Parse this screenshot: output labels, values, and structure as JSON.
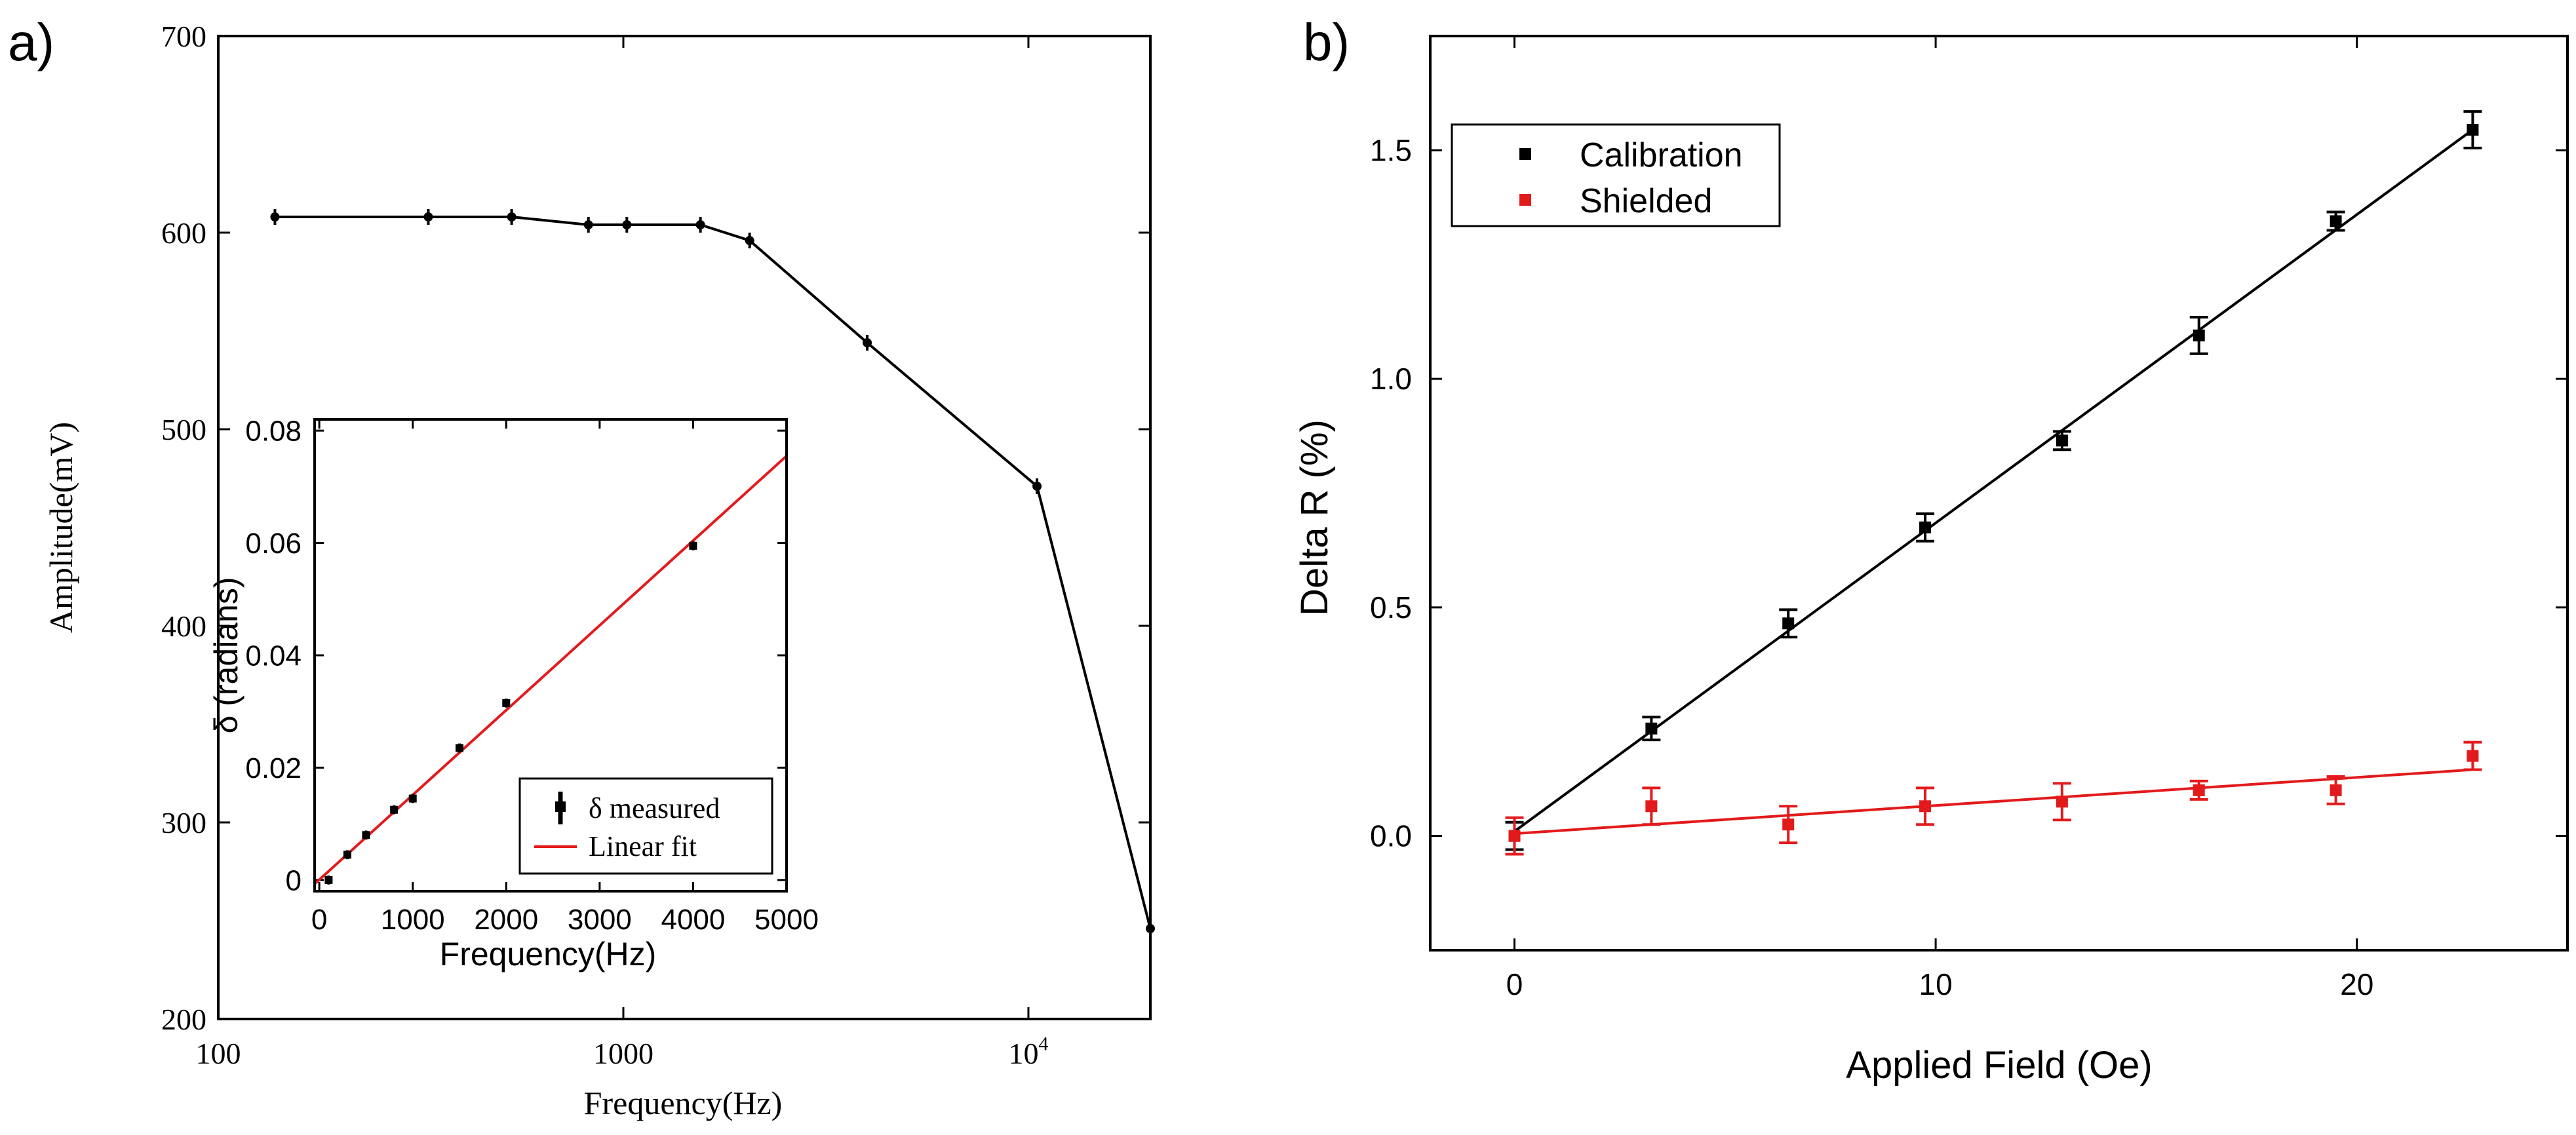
{
  "panel_labels": {
    "a": "a)",
    "b": "b)"
  },
  "chart_data": [
    {
      "id": "a-main",
      "type": "line",
      "xscale": "log",
      "title": "",
      "xlabel": "Frequency(Hz)",
      "ylabel": "Amplitude(mV)",
      "xlim": [
        100,
        20000
      ],
      "ylim": [
        200,
        700
      ],
      "xticks": [
        {
          "value": 100,
          "label": "100"
        },
        {
          "value": 1000,
          "label": "1000"
        },
        {
          "value": 10000,
          "label": "10",
          "sup": "4"
        }
      ],
      "yticks": [
        {
          "value": 200,
          "label": "200"
        },
        {
          "value": 300,
          "label": "300"
        },
        {
          "value": 400,
          "label": "400"
        },
        {
          "value": 500,
          "label": "500"
        },
        {
          "value": 600,
          "label": "600"
        },
        {
          "value": 700,
          "label": "700"
        }
      ],
      "series": [
        {
          "name": "Amplitude",
          "color": "#000000",
          "x": [
            138,
            330,
            530,
            820,
            1020,
            1550,
            2050,
            4000,
            10500,
            20000
          ],
          "y": [
            608,
            608,
            608,
            604,
            604,
            604,
            596,
            544,
            471,
            246
          ],
          "err": [
            4,
            4,
            4,
            4,
            4,
            4,
            4,
            4,
            4,
            4
          ]
        }
      ]
    },
    {
      "id": "a-inset",
      "type": "scatter",
      "title": "",
      "xlabel": "Frequency(Hz)",
      "ylabel": "δ (radians)",
      "xlim": [
        -50,
        5000
      ],
      "ylim": [
        -0.002,
        0.082
      ],
      "xticks": [
        {
          "value": 0,
          "label": "0"
        },
        {
          "value": 1000,
          "label": "1000"
        },
        {
          "value": 2000,
          "label": "2000"
        },
        {
          "value": 3000,
          "label": "3000"
        },
        {
          "value": 4000,
          "label": "4000"
        },
        {
          "value": 5000,
          "label": "5000"
        }
      ],
      "yticks": [
        {
          "value": 0,
          "label": "0"
        },
        {
          "value": 0.02,
          "label": "0.02"
        },
        {
          "value": 0.04,
          "label": "0.04"
        },
        {
          "value": 0.06,
          "label": "0.06"
        },
        {
          "value": 0.08,
          "label": "0.08"
        }
      ],
      "legend": {
        "position": "bottom-right",
        "entries": [
          "δ measured",
          "Linear fit"
        ]
      },
      "series": [
        {
          "name": "δ measured",
          "color": "#000000",
          "x": [
            100,
            300,
            500,
            800,
            1000,
            1500,
            2000,
            4000
          ],
          "y": [
            0.0,
            0.0045,
            0.008,
            0.0125,
            0.0145,
            0.0235,
            0.0315,
            0.0595
          ],
          "err": [
            0.0008,
            0.0008,
            0.0008,
            0.0008,
            0.0008,
            0.0008,
            0.0008,
            0.0008
          ]
        },
        {
          "name": "Linear fit",
          "color": "#e31a1c",
          "x": [
            -50,
            5000
          ],
          "y": [
            -0.0007,
            0.0755
          ]
        }
      ]
    },
    {
      "id": "b-main",
      "type": "scatter",
      "title": "",
      "xlabel": "Applied Field (Oe)",
      "ylabel": "Delta R (%)",
      "xlim": [
        -2,
        25
      ],
      "ylim": [
        -0.25,
        1.75
      ],
      "xticks": [
        {
          "value": 0,
          "label": "0"
        },
        {
          "value": 10,
          "label": "10"
        },
        {
          "value": 20,
          "label": "20"
        }
      ],
      "yticks": [
        {
          "value": 0.0,
          "label": "0.0"
        },
        {
          "value": 0.5,
          "label": "0.5"
        },
        {
          "value": 1.0,
          "label": "1.0"
        },
        {
          "value": 1.5,
          "label": "1.5"
        }
      ],
      "legend": {
        "position": "top-left",
        "entries": [
          "Calibration",
          "Shielded"
        ]
      },
      "series": [
        {
          "name": "Calibration",
          "color": "#000000",
          "x": [
            0,
            3.25,
            6.5,
            9.75,
            13.0,
            16.25,
            19.5,
            22.75
          ],
          "y": [
            0.0,
            0.235,
            0.465,
            0.675,
            0.865,
            1.095,
            1.345,
            1.545
          ],
          "err": [
            0.03,
            0.025,
            0.03,
            0.03,
            0.02,
            0.04,
            0.02,
            0.04
          ],
          "fit": {
            "x": [
              0,
              22.75
            ],
            "y": [
              0.01,
              1.545
            ]
          }
        },
        {
          "name": "Shielded",
          "color": "#e31a1c",
          "x": [
            0,
            3.25,
            6.5,
            9.75,
            13.0,
            16.25,
            19.5,
            22.75
          ],
          "y": [
            0.0,
            0.065,
            0.025,
            0.065,
            0.075,
            0.1,
            0.1,
            0.175
          ],
          "err": [
            0.04,
            0.04,
            0.04,
            0.04,
            0.04,
            0.02,
            0.03,
            0.03
          ],
          "fit": {
            "x": [
              0,
              22.75
            ],
            "y": [
              0.005,
              0.145
            ]
          }
        }
      ]
    }
  ]
}
